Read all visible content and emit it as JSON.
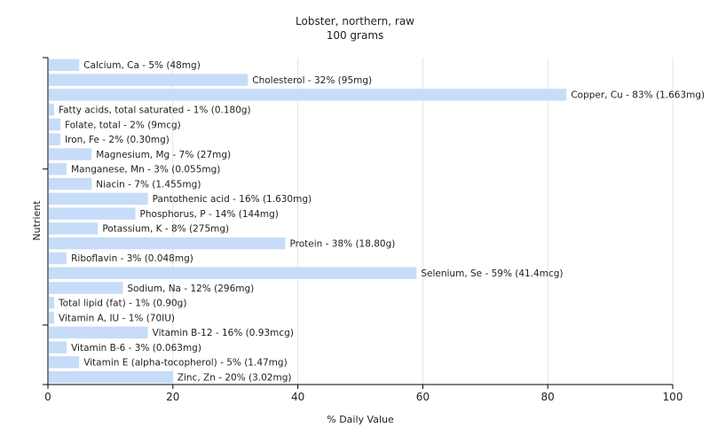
{
  "chart_data": {
    "type": "bar",
    "orientation": "horizontal",
    "title": "Lobster, northern, raw",
    "subtitle": "100 grams",
    "xlabel": "% Daily Value",
    "ylabel": "Nutrient",
    "xlim": [
      0,
      100
    ],
    "xticks": [
      "0",
      "20",
      "40",
      "60",
      "80",
      "100"
    ],
    "grid": true,
    "bar_color": "#c6dcf8",
    "categories": [
      "Calcium, Ca",
      "Cholesterol",
      "Copper, Cu",
      "Fatty acids, total saturated",
      "Folate, total",
      "Iron, Fe",
      "Magnesium, Mg",
      "Manganese, Mn",
      "Niacin",
      "Pantothenic acid",
      "Phosphorus, P",
      "Potassium, K",
      "Protein",
      "Riboflavin",
      "Selenium, Se",
      "Sodium, Na",
      "Total lipid (fat)",
      "Vitamin A, IU",
      "Vitamin B-12",
      "Vitamin B-6",
      "Vitamin E (alpha-tocopherol)",
      "Zinc, Zn"
    ],
    "values": [
      5,
      32,
      83,
      1,
      2,
      2,
      7,
      3,
      7,
      16,
      14,
      8,
      38,
      3,
      59,
      12,
      1,
      1,
      16,
      3,
      5,
      20
    ],
    "labels": [
      "Calcium, Ca - 5% (48mg)",
      "Cholesterol - 32% (95mg)",
      "Copper, Cu - 83% (1.663mg)",
      "Fatty acids, total saturated - 1% (0.180g)",
      "Folate, total - 2% (9mcg)",
      "Iron, Fe - 2% (0.30mg)",
      "Magnesium, Mg - 7% (27mg)",
      "Manganese, Mn - 3% (0.055mg)",
      "Niacin - 7% (1.455mg)",
      "Pantothenic acid - 16% (1.630mg)",
      "Phosphorus, P - 14% (144mg)",
      "Potassium, K - 8% (275mg)",
      "Protein - 38% (18.80g)",
      "Riboflavin - 3% (0.048mg)",
      "Selenium, Se - 59% (41.4mcg)",
      "Sodium, Na - 12% (296mg)",
      "Total lipid (fat) - 1% (0.90g)",
      "Vitamin A, IU - 1% (70IU)",
      "Vitamin B-12 - 16% (0.93mcg)",
      "Vitamin B-6 - 3% (0.063mg)",
      "Vitamin E (alpha-tocopherol) - 5% (1.47mg)",
      "Zinc, Zn - 20% (3.02mg)"
    ]
  }
}
